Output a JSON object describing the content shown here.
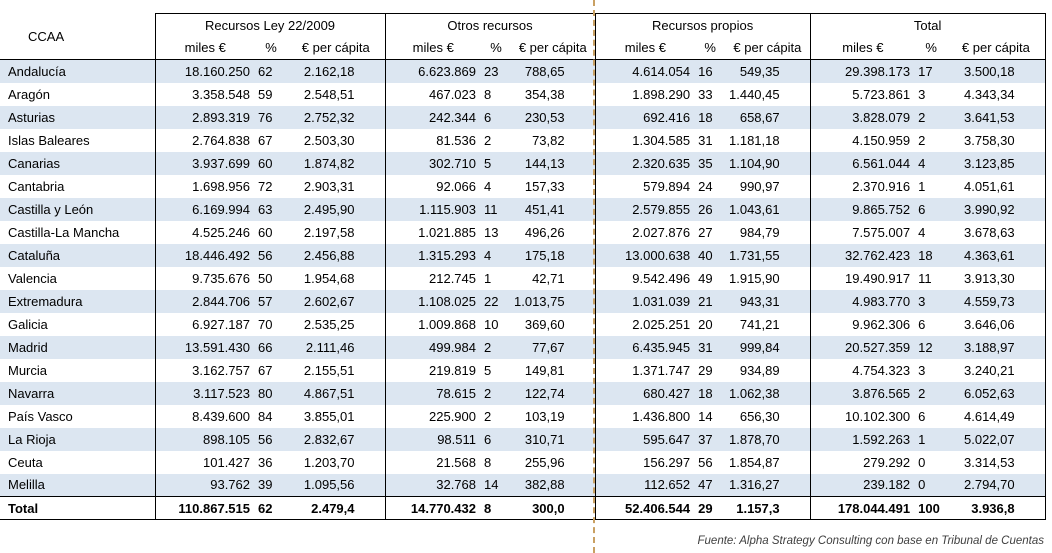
{
  "chart_data": {
    "type": "table",
    "corner_label": "CCAA",
    "column_groups": [
      {
        "label": "Recursos Ley 22/2009"
      },
      {
        "label": "Otros recursos"
      },
      {
        "label": "Recursos propios"
      },
      {
        "label": "Total"
      }
    ],
    "sub_columns": [
      "miles €",
      "%",
      "€ per cápita"
    ],
    "rows": [
      {
        "ccaa": "Andalucía",
        "values": [
          "18.160.250",
          "62",
          "2.162,18",
          "6.623.869",
          "23",
          "788,65",
          "4.614.054",
          "16",
          "549,35",
          "29.398.173",
          "17",
          "3.500,18"
        ]
      },
      {
        "ccaa": "Aragón",
        "values": [
          "3.358.548",
          "59",
          "2.548,51",
          "467.023",
          "8",
          "354,38",
          "1.898.290",
          "33",
          "1.440,45",
          "5.723.861",
          "3",
          "4.343,34"
        ]
      },
      {
        "ccaa": "Asturias",
        "values": [
          "2.893.319",
          "76",
          "2.752,32",
          "242.344",
          "6",
          "230,53",
          "692.416",
          "18",
          "658,67",
          "3.828.079",
          "2",
          "3.641,53"
        ]
      },
      {
        "ccaa": "Islas Baleares",
        "values": [
          "2.764.838",
          "67",
          "2.503,30",
          "81.536",
          "2",
          "73,82",
          "1.304.585",
          "31",
          "1.181,18",
          "4.150.959",
          "2",
          "3.758,30"
        ]
      },
      {
        "ccaa": "Canarias",
        "values": [
          "3.937.699",
          "60",
          "1.874,82",
          "302.710",
          "5",
          "144,13",
          "2.320.635",
          "35",
          "1.104,90",
          "6.561.044",
          "4",
          "3.123,85"
        ]
      },
      {
        "ccaa": "Cantabria",
        "values": [
          "1.698.956",
          "72",
          "2.903,31",
          "92.066",
          "4",
          "157,33",
          "579.894",
          "24",
          "990,97",
          "2.370.916",
          "1",
          "4.051,61"
        ]
      },
      {
        "ccaa": "Castilla y León",
        "values": [
          "6.169.994",
          "63",
          "2.495,90",
          "1.115.903",
          "11",
          "451,41",
          "2.579.855",
          "26",
          "1.043,61",
          "9.865.752",
          "6",
          "3.990,92"
        ]
      },
      {
        "ccaa": "Castilla-La Mancha",
        "values": [
          "4.525.246",
          "60",
          "2.197,58",
          "1.021.885",
          "13",
          "496,26",
          "2.027.876",
          "27",
          "984,79",
          "7.575.007",
          "4",
          "3.678,63"
        ]
      },
      {
        "ccaa": "Cataluña",
        "values": [
          "18.446.492",
          "56",
          "2.456,88",
          "1.315.293",
          "4",
          "175,18",
          "13.000.638",
          "40",
          "1.731,55",
          "32.762.423",
          "18",
          "4.363,61"
        ]
      },
      {
        "ccaa": "Valencia",
        "values": [
          "9.735.676",
          "50",
          "1.954,68",
          "212.745",
          "1",
          "42,71",
          "9.542.496",
          "49",
          "1.915,90",
          "19.490.917",
          "11",
          "3.913,30"
        ]
      },
      {
        "ccaa": "Extremadura",
        "values": [
          "2.844.706",
          "57",
          "2.602,67",
          "1.108.025",
          "22",
          "1.013,75",
          "1.031.039",
          "21",
          "943,31",
          "4.983.770",
          "3",
          "4.559,73"
        ]
      },
      {
        "ccaa": "Galicia",
        "values": [
          "6.927.187",
          "70",
          "2.535,25",
          "1.009.868",
          "10",
          "369,60",
          "2.025.251",
          "20",
          "741,21",
          "9.962.306",
          "6",
          "3.646,06"
        ]
      },
      {
        "ccaa": "Madrid",
        "values": [
          "13.591.430",
          "66",
          "2.111,46",
          "499.984",
          "2",
          "77,67",
          "6.435.945",
          "31",
          "999,84",
          "20.527.359",
          "12",
          "3.188,97"
        ]
      },
      {
        "ccaa": "Murcia",
        "values": [
          "3.162.757",
          "67",
          "2.155,51",
          "219.819",
          "5",
          "149,81",
          "1.371.747",
          "29",
          "934,89",
          "4.754.323",
          "3",
          "3.240,21"
        ]
      },
      {
        "ccaa": "Navarra",
        "values": [
          "3.117.523",
          "80",
          "4.867,51",
          "78.615",
          "2",
          "122,74",
          "680.427",
          "18",
          "1.062,38",
          "3.876.565",
          "2",
          "6.052,63"
        ]
      },
      {
        "ccaa": "País Vasco",
        "values": [
          "8.439.600",
          "84",
          "3.855,01",
          "225.900",
          "2",
          "103,19",
          "1.436.800",
          "14",
          "656,30",
          "10.102.300",
          "6",
          "4.614,49"
        ]
      },
      {
        "ccaa": "La Rioja",
        "values": [
          "898.105",
          "56",
          "2.832,67",
          "98.511",
          "6",
          "310,71",
          "595.647",
          "37",
          "1.878,70",
          "1.592.263",
          "1",
          "5.022,07"
        ]
      },
      {
        "ccaa": "Ceuta",
        "values": [
          "101.427",
          "36",
          "1.203,70",
          "21.568",
          "8",
          "255,96",
          "156.297",
          "56",
          "1.854,87",
          "279.292",
          "0",
          "3.314,53"
        ]
      },
      {
        "ccaa": "Melilla",
        "values": [
          "93.762",
          "39",
          "1.095,56",
          "32.768",
          "14",
          "382,88",
          "112.652",
          "47",
          "1.316,27",
          "239.182",
          "0",
          "2.794,70"
        ]
      }
    ],
    "total": {
      "ccaa": "Total",
      "values": [
        "110.867.515",
        "62",
        "2.479,4",
        "14.770.432",
        "8",
        "300,0",
        "52.406.544",
        "29",
        "1.157,3",
        "178.044.491",
        "100",
        "3.936,8"
      ]
    },
    "footer": "Fuente: Alpha Strategy Consulting con base en Tribunal de Cuentas",
    "colors": {
      "row_shade": "#dce6f1",
      "border": "#000000",
      "page_break": "#c9a063",
      "text": "#000000"
    }
  }
}
